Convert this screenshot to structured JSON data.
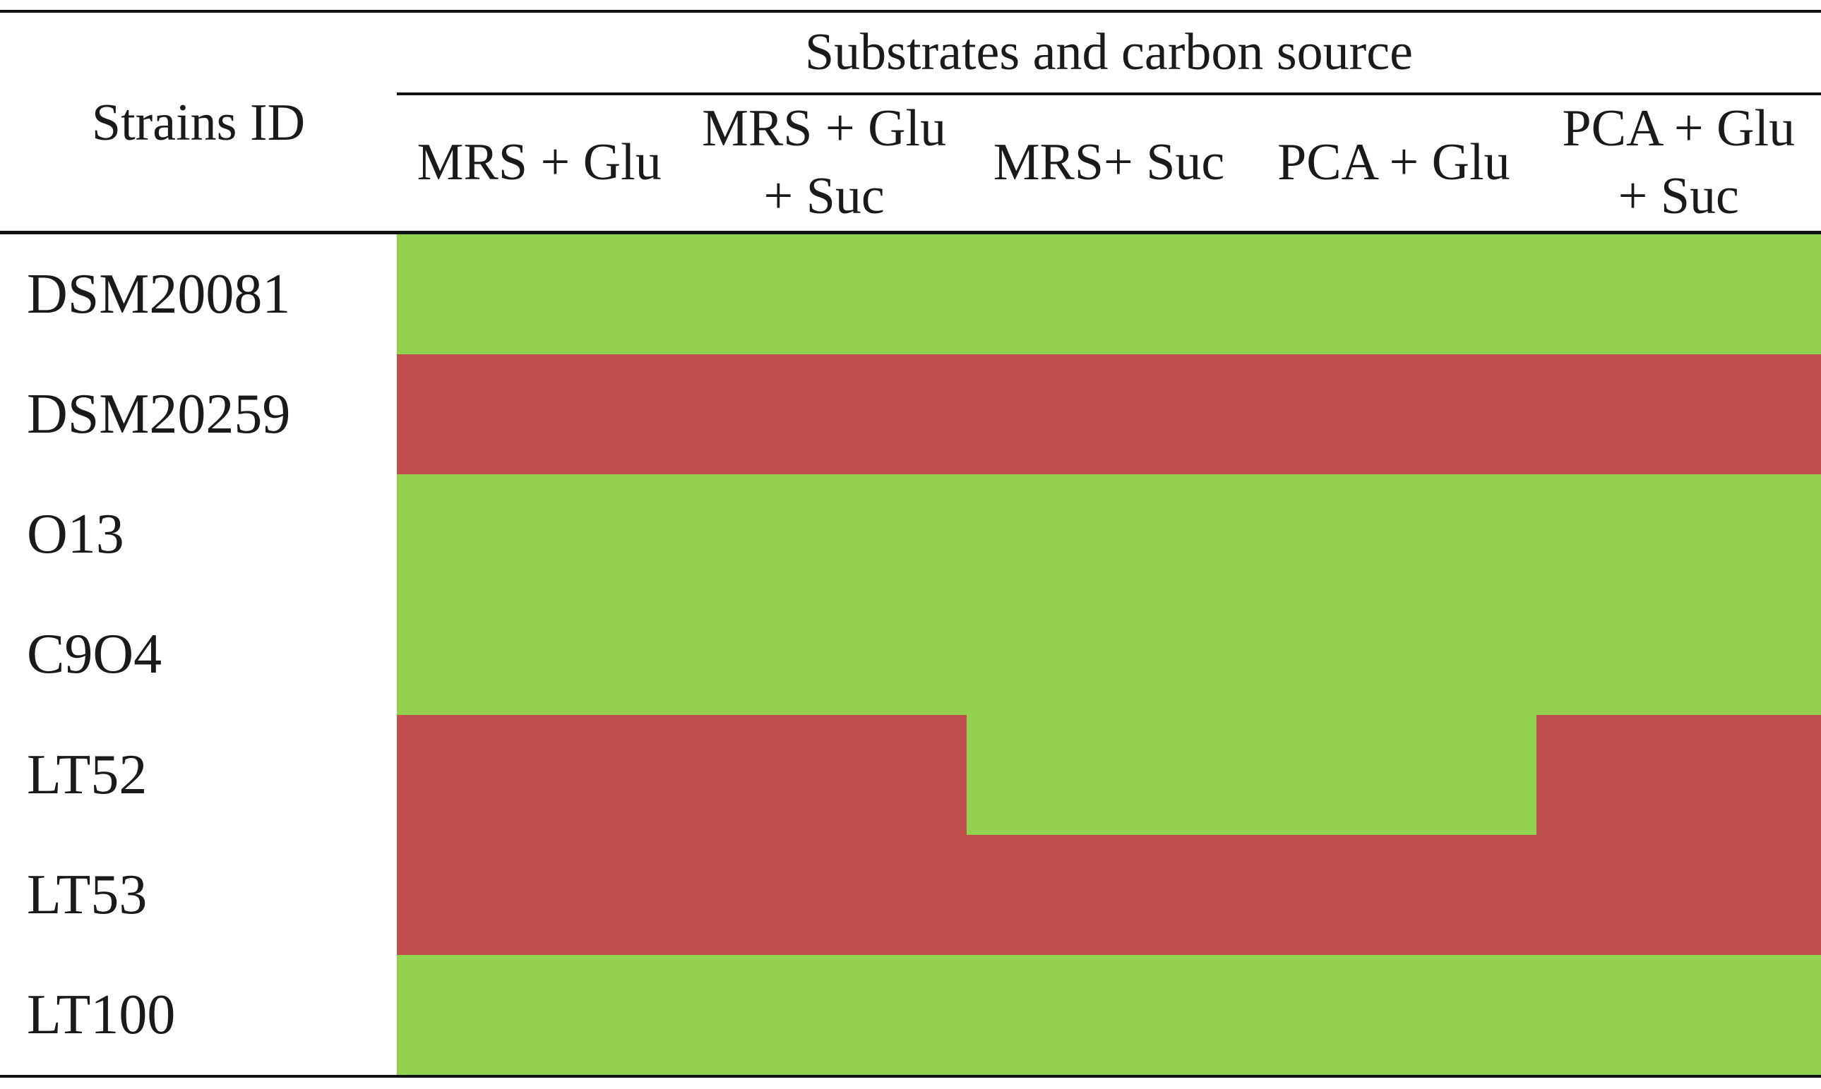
{
  "chart_data": {
    "type": "heatmap",
    "title": "",
    "row_header": "Strains ID",
    "column_group_header": "Substrates and carbon source",
    "columns": [
      [
        "MRS + Glu"
      ],
      [
        "MRS + Glu",
        "+ Suc"
      ],
      [
        "MRS+ Suc"
      ],
      [
        "PCA + Glu"
      ],
      [
        "PCA + Glu",
        "+ Suc"
      ]
    ],
    "rows": [
      "DSM20081",
      "DSM20259",
      "O13",
      "C9O4",
      "LT52",
      "LT53",
      "LT100"
    ],
    "values": [
      [
        1,
        1,
        1,
        1,
        1
      ],
      [
        0,
        0,
        0,
        0,
        0
      ],
      [
        1,
        1,
        1,
        1,
        1
      ],
      [
        1,
        1,
        1,
        1,
        1
      ],
      [
        0,
        0,
        1,
        1,
        0
      ],
      [
        0,
        0,
        0,
        0,
        0
      ],
      [
        1,
        1,
        1,
        1,
        1
      ]
    ],
    "color_map": {
      "1": "#92d050",
      "0": "#c0504d"
    }
  }
}
